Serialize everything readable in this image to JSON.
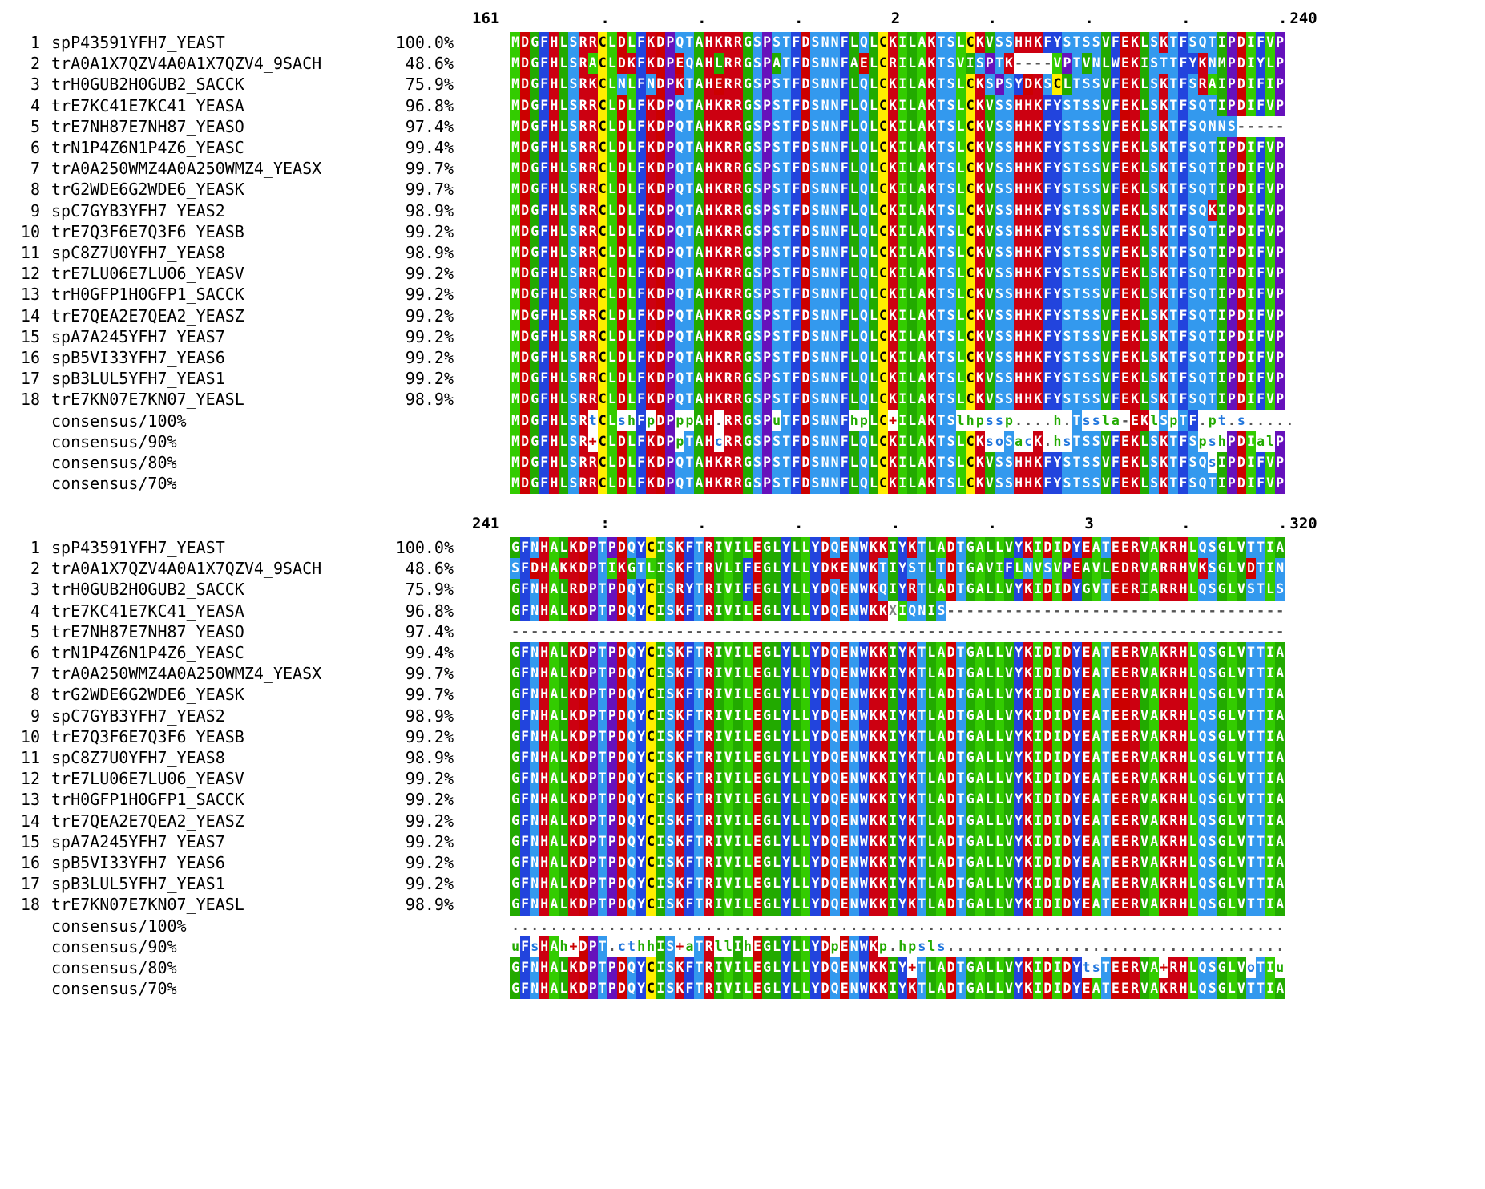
{
  "blocks": [
    {
      "ruler": {
        "start": "161",
        "end": "240",
        "marks": [
          ".",
          ".",
          ".",
          "2",
          ".",
          ".",
          ".",
          "."
        ]
      },
      "rows": [
        {
          "num": "1",
          "name": "spP43591YFH7_YEAST",
          "pct": "100.0%",
          "seq": "MDGFHLSRRCLDLFKDPQTAHKRRGSPSTFDSNNFLQLCKILAKTSLCKVSSHHKFYSTSSVFEKLSKTFSQTIPDIFVP"
        },
        {
          "num": "2",
          "name": "trA0A1X7QZV4A0A1X7QZV4_9SACH",
          "pct": "48.6%",
          "seq": "MDGFHLSRACLDKFKDPEQAHLRRGSPATFDSNNFAELCRILAKTSVISPTK----VPTVNLWEKISTTFYKNMPDIYLP"
        },
        {
          "num": "3",
          "name": "trH0GUB2H0GUB2_SACCK",
          "pct": "75.9%",
          "seq": "MDGFHLSRKCLNLFNDPKTAHERRGSPSTFDSNNFLQLCKILAKTSLCKSPSYDKSCLTSSVFEKLSKTFSRAIPDIFIP"
        },
        {
          "num": "4",
          "name": "trE7KC41E7KC41_YEASA",
          "pct": "96.8%",
          "seq": "MDGFHLSRRCLDLFKDPQTAHKRRGSPSTFDSNNFLQLCKILAKTSLCKVSSHHKFYSTSSVFEKLSKTFSQTIPDIFVP"
        },
        {
          "num": "5",
          "name": "trE7NH87E7NH87_YEASO",
          "pct": "97.4%",
          "seq": "MDGFHLSRRCLDLFKDPQTAHKRRGSPSTFDSNNFLQLCKILAKTSLCKVSSHHKFYSTSSVFEKLSKTFSQNNS-----"
        },
        {
          "num": "6",
          "name": "trN1P4Z6N1P4Z6_YEASC",
          "pct": "99.4%",
          "seq": "MDGFHLSRRCLDLFKDPQTAHKRRGSPSTFDSNNFLQLCKILAKTSLCKVSSHHKFYSTSSVFEKLSKTFSQTIPDIFVP"
        },
        {
          "num": "7",
          "name": "trA0A250WMZ4A0A250WMZ4_YEASX",
          "pct": "99.7%",
          "seq": "MDGFHLSRRCLDLFKDPQTAHKRRGSPSTFDSNNFLQLCKILAKTSLCKVSSHHKFYSTSSVFEKLSKTFSQTIPDIFVP"
        },
        {
          "num": "8",
          "name": "trG2WDE6G2WDE6_YEASK",
          "pct": "99.7%",
          "seq": "MDGFHLSRRCLDLFKDPQTAHKRRGSPSTFDSNNFLQLCKILAKTSLCKVSSHHKFYSTSSVFEKLSKTFSQTIPDIFVP"
        },
        {
          "num": "9",
          "name": "spC7GYB3YFH7_YEAS2",
          "pct": "98.9%",
          "seq": "MDGFHLSRRCLDLFKDPQTAHKRRGSPSTFDSNNFLQLCKILAKTSLCKVSSHHKFYSTSSVFEKLSKTFSQKIPDIFVP"
        },
        {
          "num": "10",
          "name": "trE7Q3F6E7Q3F6_YEASB",
          "pct": "99.2%",
          "seq": "MDGFHLSRRCLDLFKDPQTAHKRRGSPSTFDSNNFLQLCKILAKTSLCKVSSHHKFYSTSSVFEKLSKTFSQTIPDIFVP"
        },
        {
          "num": "11",
          "name": "spC8Z7U0YFH7_YEAS8",
          "pct": "98.9%",
          "seq": "MDGFHLSRRCLDLFKDPQTAHKRRGSPSTFDSNNFLQLCKILAKTSLCKVSSHHKFYSTSSVFEKLSKTFSQTIPDIFVP"
        },
        {
          "num": "12",
          "name": "trE7LU06E7LU06_YEASV",
          "pct": "99.2%",
          "seq": "MDGFHLSRRCLDLFKDPQTAHKRRGSPSTFDSNNFLQLCKILAKTSLCKVSSHHKFYSTSSVFEKLSKTFSQTIPDIFVP"
        },
        {
          "num": "13",
          "name": "trH0GFP1H0GFP1_SACCK",
          "pct": "99.2%",
          "seq": "MDGFHLSRRCLDLFKDPQTAHKRRGSPSTFDSNNFLQLCKILAKTSLCKVSSHHKFYSTSSVFEKLSKTFSQTIPDIFVP"
        },
        {
          "num": "14",
          "name": "trE7QEA2E7QEA2_YEASZ",
          "pct": "99.2%",
          "seq": "MDGFHLSRRCLDLFKDPQTAHKRRGSPSTFDSNNFLQLCKILAKTSLCKVSSHHKFYSTSSVFEKLSKTFSQTIPDIFVP"
        },
        {
          "num": "15",
          "name": "spA7A245YFH7_YEAS7",
          "pct": "99.2%",
          "seq": "MDGFHLSRRCLDLFKDPQTAHKRRGSPSTFDSNNFLQLCKILAKTSLCKVSSHHKFYSTSSVFEKLSKTFSQTIPDIFVP"
        },
        {
          "num": "16",
          "name": "spB5VI33YFH7_YEAS6",
          "pct": "99.2%",
          "seq": "MDGFHLSRRCLDLFKDPQTAHKRRGSPSTFDSNNFLQLCKILAKTSLCKVSSHHKFYSTSSVFEKLSKTFSQTIPDIFVP"
        },
        {
          "num": "17",
          "name": "spB3LUL5YFH7_YEAS1",
          "pct": "99.2%",
          "seq": "MDGFHLSRRCLDLFKDPQTAHKRRGSPSTFDSNNFLQLCKILAKTSLCKVSSHHKFYSTSSVFEKLSKTFSQTIPDIFVP"
        },
        {
          "num": "18",
          "name": "trE7KN07E7KN07_YEASL",
          "pct": "98.9%",
          "seq": "MDGFHLSRRCLDLFKDPQTAHKRRGSPSTFDSNNFLQLCKILAKTSLCKVSSHHKFYSTSSVFEKLSKTFSQTIPDIFVP"
        },
        {
          "num": "",
          "name": "consensus/100%",
          "pct": "",
          "seq": "MDGFHLSRtCLshFpDPppAH.RRGSPuTFDSNNFhpLC+ILAKTSlhpssp....h.Tssla-EKlSpTF.pt.s....."
        },
        {
          "num": "",
          "name": "consensus/90%",
          "pct": "",
          "seq": "MDGFHLSR+CLDLFKDPpTAHcRRGSPSTFDSNNFLQLCKILAKTSLCKsoSacK.hsTSSVFEKLSKTFSpshPDIalP"
        },
        {
          "num": "",
          "name": "consensus/80%",
          "pct": "",
          "seq": "MDGFHLSRRCLDLFKDPQTAHKRRGSPSTFDSNNFLQLCKILAKTSLCKVSSHHKFYSTSSVFEKLSKTFSQsIPDIFVP"
        },
        {
          "num": "",
          "name": "consensus/70%",
          "pct": "",
          "seq": "MDGFHLSRRCLDLFKDPQTAHKRRGSPSTFDSNNFLQLCKILAKTSLCKVSSHHKFYSTSSVFEKLSKTFSQTIPDIFVP"
        }
      ]
    },
    {
      "ruler": {
        "start": "241",
        "end": "320",
        "marks": [
          ":",
          ".",
          ".",
          ".",
          ".",
          "3",
          ".",
          "."
        ]
      },
      "rows": [
        {
          "num": "1",
          "name": "spP43591YFH7_YEAST",
          "pct": "100.0%",
          "seq": "GFNHALKDPTPDQYCISKFTRIVILEGLYLLYDQENWKKIYKTLADTGALLVYKIDIDYEATEERVAKRHLQSGLVTTIA"
        },
        {
          "num": "2",
          "name": "trA0A1X7QZV4A0A1X7QZV4_9SACH",
          "pct": "48.6%",
          "seq": "SFDHAKKDPTIKGTLISKFTRVLIFEGLYLLYDKENWKTIYSTLTDTGAVIFLNVSVPEAVLEDRVARRHVKSGLVDTIN"
        },
        {
          "num": "3",
          "name": "trH0GUB2H0GUB2_SACCK",
          "pct": "75.9%",
          "seq": "GFNHALRDPTPDQYCISRYTRIVIFEGLYLLYDQENWKQIYRTLADTGALLVYKIDIDYGVTEERIARRHLQSGLVSTLS"
        },
        {
          "num": "4",
          "name": "trE7KC41E7KC41_YEASA",
          "pct": "96.8%",
          "seq": "GFNHALKDPTPDQYCISKFTRIVILEGLYLLYDQENWKKXIQNIS-----------------------------------"
        },
        {
          "num": "5",
          "name": "trE7NH87E7NH87_YEASO",
          "pct": "97.4%",
          "seq": "--------------------------------------------------------------------------------"
        },
        {
          "num": "6",
          "name": "trN1P4Z6N1P4Z6_YEASC",
          "pct": "99.4%",
          "seq": "GFNHALKDPTPDQYCISKFTRIVILEGLYLLYDQENWKKIYKTLADTGALLVYKIDIDYEATEERVAKRHLQSGLVTTIA"
        },
        {
          "num": "7",
          "name": "trA0A250WMZ4A0A250WMZ4_YEASX",
          "pct": "99.7%",
          "seq": "GFNHALKDPTPDQYCISKFTRIVILEGLYLLYDQENWKKIYKTLADTGALLVYKIDIDYEATEERVAKRHLQSGLVTTIA"
        },
        {
          "num": "8",
          "name": "trG2WDE6G2WDE6_YEASK",
          "pct": "99.7%",
          "seq": "GFNHALKDPTPDQYCISKFTRIVILEGLYLLYDQENWKKIYKTLADTGALLVYKIDIDYEATEERVAKRHLQSGLVTTIA"
        },
        {
          "num": "9",
          "name": "spC7GYB3YFH7_YEAS2",
          "pct": "98.9%",
          "seq": "GFNHALKDPTPDQYCISKFTRIVILEGLYLLYDQENWKKIYKTLADTGALLVYKIDIDYEATEERVAKRHLQSGLVTTIA"
        },
        {
          "num": "10",
          "name": "trE7Q3F6E7Q3F6_YEASB",
          "pct": "99.2%",
          "seq": "GFNHALKDPTPDQYCISKFTRIVILEGLYLLYDQENWKKIYKTLADTGALLVYKIDIDYEATEERVAKRHLQSGLVTTIA"
        },
        {
          "num": "11",
          "name": "spC8Z7U0YFH7_YEAS8",
          "pct": "98.9%",
          "seq": "GFNHALKDPTPDQYCISKFTRIVILEGLYLLYDQENWKKIYKTLADTGALLVYKIDIDYEATEERVAKRHLQSGLVTTIA"
        },
        {
          "num": "12",
          "name": "trE7LU06E7LU06_YEASV",
          "pct": "99.2%",
          "seq": "GFNHALKDPTPDQYCISKFTRIVILEGLYLLYDQENWKKIYKTLADTGALLVYKIDIDYEATEERVAKRHLQSGLVTTIA"
        },
        {
          "num": "13",
          "name": "trH0GFP1H0GFP1_SACCK",
          "pct": "99.2%",
          "seq": "GFNHALKDPTPDQYCISKFTRIVILEGLYLLYDQENWKKIYKTLADTGALLVYKIDIDYEATEERVAKRHLQSGLVTTIA"
        },
        {
          "num": "14",
          "name": "trE7QEA2E7QEA2_YEASZ",
          "pct": "99.2%",
          "seq": "GFNHALKDPTPDQYCISKFTRIVILEGLYLLYDQENWKKIYKTLADTGALLVYKIDIDYEATEERVAKRHLQSGLVTTIA"
        },
        {
          "num": "15",
          "name": "spA7A245YFH7_YEAS7",
          "pct": "99.2%",
          "seq": "GFNHALKDPTPDQYCISKFTRIVILEGLYLLYDQENWKKIYKTLADTGALLVYKIDIDYEATEERVAKRHLQSGLVTTIA"
        },
        {
          "num": "16",
          "name": "spB5VI33YFH7_YEAS6",
          "pct": "99.2%",
          "seq": "GFNHALKDPTPDQYCISKFTRIVILEGLYLLYDQENWKKIYKTLADTGALLVYKIDIDYEATEERVAKRHLQSGLVTTIA"
        },
        {
          "num": "17",
          "name": "spB3LUL5YFH7_YEAS1",
          "pct": "99.2%",
          "seq": "GFNHALKDPTPDQYCISKFTRIVILEGLYLLYDQENWKKIYKTLADTGALLVYKIDIDYEATEERVAKRHLQSGLVTTIA"
        },
        {
          "num": "18",
          "name": "trE7KN07E7KN07_YEASL",
          "pct": "98.9%",
          "seq": "GFNHALKDPTPDQYCISKFTRIVILEGLYLLYDQENWKKIYKTLADTGALLVYKIDIDYEATEERVAKRHLQSGLVTTIA"
        },
        {
          "num": "",
          "name": "consensus/100%",
          "pct": "",
          "seq": "................................................................................"
        },
        {
          "num": "",
          "name": "consensus/90%",
          "pct": "",
          "seq": "uFsHAh+DPT.cthhIS+aTRllIhEGLYLLYDpENWKp.hpsls..................................."
        },
        {
          "num": "",
          "name": "consensus/80%",
          "pct": "",
          "seq": "GFNHALKDPTPDQYCISKFTRIVILEGLYLLYDQENWKKIY+TLADTGALLVYKIDIDYtsTEERVA+RHLQSGLVoTIu"
        },
        {
          "num": "",
          "name": "consensus/70%",
          "pct": "",
          "seq": "GFNHALKDPTPDQYCISKFTRIVILEGLYLLYDQENWKKIYKTLADTGALLVYKIDIDYEATEERVAKRHLQSGLVTTIA"
        }
      ]
    }
  ],
  "colors": {
    "hydrophobic_dark": "#22aa00",
    "hydrophobic_light": "#33cc00",
    "aromatic": "#2244dd",
    "polar_blue": "#3399ee",
    "acidic_red": "#cc0000",
    "basic_red": "#cc0011",
    "cysteine_yellow": "#ffee00",
    "proline": "#6611bb",
    "glycine": "#22aa00",
    "unshaded_text": "#000000",
    "consensus_green": "#22aa00",
    "consensus_blue": "#2277dd",
    "consensus_red": "#cc0000"
  }
}
